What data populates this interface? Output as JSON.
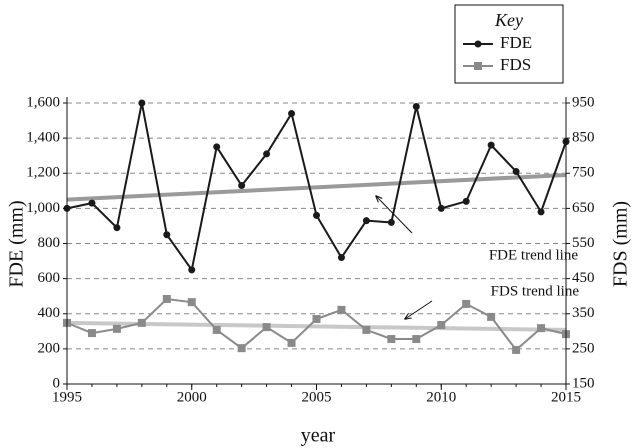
{
  "chart_data": {
    "type": "line",
    "x_label": "year",
    "y_label": "FDE (mm)",
    "y2_label": "FDS (mm)",
    "x": [
      1995,
      1996,
      1997,
      1998,
      1999,
      2000,
      2001,
      2002,
      2003,
      2004,
      2005,
      2006,
      2007,
      2008,
      2009,
      2010,
      2011,
      2012,
      2013,
      2014,
      2015
    ],
    "xlim": [
      1995,
      2015
    ],
    "xticks": [
      1995,
      2000,
      2005,
      2010,
      2015
    ],
    "ylim": [
      0,
      1600
    ],
    "yticks": [
      0,
      200,
      400,
      600,
      800,
      {
        "value": 1000,
        "label": "1,000"
      },
      {
        "value": 1200,
        "label": "1,200"
      },
      {
        "value": 1400,
        "label": "1,400"
      },
      {
        "value": 1600,
        "label": "1,600"
      }
    ],
    "y2lim": [
      150,
      950
    ],
    "y2ticks": [
      150,
      250,
      350,
      450,
      550,
      650,
      750,
      850,
      950
    ],
    "grid": true,
    "legend": {
      "title": "Key",
      "position": "top-right"
    },
    "series": [
      {
        "name": "FDE",
        "color": "#1a1a1a",
        "marker": "circle",
        "axis": "y",
        "values": [
          1000,
          1030,
          890,
          1600,
          850,
          650,
          1350,
          1130,
          1310,
          1540,
          960,
          720,
          930,
          920,
          1580,
          1000,
          1040,
          1360,
          1210,
          980,
          1380
        ]
      },
      {
        "name": "FDS",
        "color": "#8a8a8a",
        "marker": "square",
        "axis": "y2",
        "values": [
          324,
          295,
          307,
          324,
          392,
          383,
          304,
          252,
          312,
          267,
          335,
          361,
          304,
          278,
          278,
          318,
          378,
          341,
          247,
          309,
          292
        ]
      }
    ],
    "trend_lines": [
      {
        "label": "FDE trend line",
        "axis": "y",
        "color": "#9a9a9a",
        "x": [
          1995,
          2015
        ],
        "values": [
          1050,
          1190
        ]
      },
      {
        "label": "FDS trend line",
        "axis": "y2",
        "color": "#c8c8c8",
        "x": [
          1995,
          2015
        ],
        "values": [
          324,
          304
        ]
      }
    ]
  }
}
